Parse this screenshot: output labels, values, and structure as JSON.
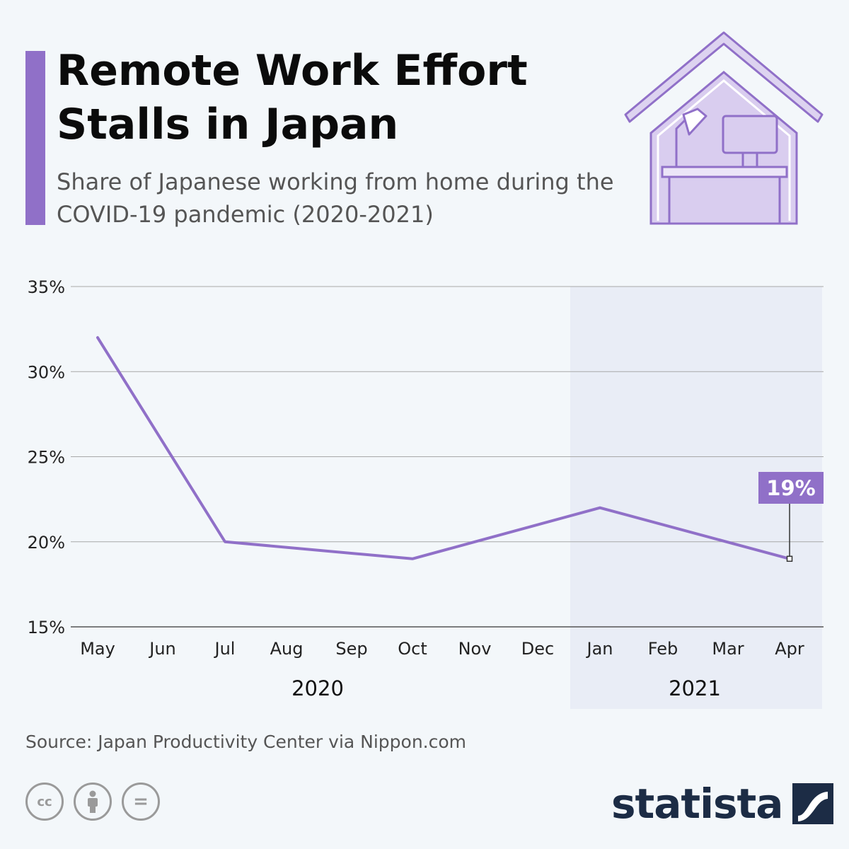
{
  "header": {
    "title": "Remote Work Effort Stalls in Japan",
    "subtitle": "Share of Japanese working from home during the COVID-19 pandemic (2020-2021)"
  },
  "colors": {
    "accent": "#9070c8",
    "highlight_band": "#e9edf6",
    "brand_dark": "#1c2c45"
  },
  "chart_data": {
    "type": "line",
    "categories": [
      "May",
      "Jun",
      "Jul",
      "Aug",
      "Sep",
      "Oct",
      "Nov",
      "Dec",
      "Jan",
      "Feb",
      "Mar",
      "Apr"
    ],
    "year_groups": [
      {
        "label": "2020",
        "from": "May",
        "to": "Dec"
      },
      {
        "label": "2021",
        "from": "Jan",
        "to": "Apr",
        "highlighted": true
      }
    ],
    "series": [
      {
        "points": [
          {
            "x": "May",
            "y": 32
          },
          {
            "x": "Jul",
            "y": 20
          },
          {
            "x": "Oct",
            "y": 19
          },
          {
            "x": "Jan",
            "y": 22
          },
          {
            "x": "Apr",
            "y": 19
          }
        ],
        "color": "#9070c8"
      }
    ],
    "yticks": [
      15,
      20,
      25,
      30,
      35
    ],
    "ytick_labels": [
      "15%",
      "20%",
      "25%",
      "30%",
      "35%"
    ],
    "ylim": [
      15,
      35
    ],
    "grid": true,
    "annotation": {
      "x": "Apr",
      "y": 19,
      "text": "19%"
    }
  },
  "footer": {
    "source": "Source: Japan Productivity Center via Nippon.com",
    "license_icons": [
      {
        "name": "cc-icon",
        "text": "cc"
      },
      {
        "name": "attribution-icon",
        "text": ""
      },
      {
        "name": "no-derivatives-icon",
        "text": "="
      }
    ],
    "brand": "statista",
    "brand_icon": "statista-logo-icon"
  }
}
